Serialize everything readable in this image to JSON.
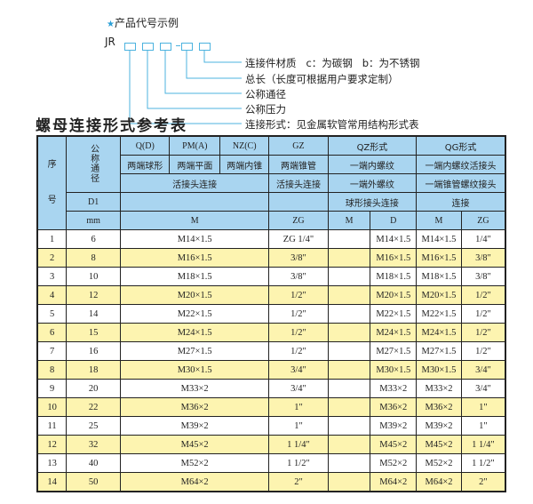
{
  "example": {
    "title": "产品代号示例",
    "code_prefix": "JR",
    "labels": [
      "连接件材质   c：为碳钢   b：为不锈钢",
      "总长（长度可根据用户要求定制）",
      "公称通径",
      "公称压力",
      "连接形式：见金属软管常用结构形式表"
    ],
    "accent_color": "#4cb3df"
  },
  "table_title": "螺母连接形式参考表",
  "header": {
    "seq": "序\n号",
    "nominal": "公称通径",
    "d1": "D1",
    "mm": "mm",
    "q": "Q(D)",
    "pm": "PM(A)",
    "nz": "NZ(C)",
    "gz": "GZ",
    "qz": "QZ形式",
    "qg": "QG形式",
    "q2": "两端球形",
    "pm2": "两端平面",
    "nz2": "两端内锥",
    "gz2": "两端锥管",
    "qz2": "一端内螺纹",
    "qg2": "一端内螺纹活接头",
    "row3_a": "活接头连接",
    "row3_gz": "活接头连接",
    "row3_qz": "一端外螺纹",
    "row3_qg": "一端锥管螺纹接头",
    "row4_qz": "球形接头连接",
    "row4_qg": "连接",
    "m": "M",
    "zg": "ZG",
    "qz_m": "M",
    "qz_d": "D",
    "qg_m": "M",
    "qg_zg": "ZG"
  },
  "colors": {
    "header_bg": "#a9d5f0",
    "alt_row_bg": "#fdf4b0"
  },
  "rows": [
    {
      "no": "1",
      "d1": "6",
      "m": "M14×1.5",
      "zg": "ZG 1/4\"",
      "qz_m": "",
      "qz_d": "M14×1.5",
      "qg_m": "M14×1.5",
      "qg_zg": "1/4\""
    },
    {
      "no": "2",
      "d1": "8",
      "m": "M16×1.5",
      "zg": "3/8\"",
      "qz_m": "",
      "qz_d": "M16×1.5",
      "qg_m": "M16×1.5",
      "qg_zg": "3/8\""
    },
    {
      "no": "3",
      "d1": "10",
      "m": "M18×1.5",
      "zg": "3/8\"",
      "qz_m": "",
      "qz_d": "M18×1.5",
      "qg_m": "M18×1.5",
      "qg_zg": "3/8\""
    },
    {
      "no": "4",
      "d1": "12",
      "m": "M20×1.5",
      "zg": "1/2\"",
      "qz_m": "",
      "qz_d": "M20×1.5",
      "qg_m": "M20×1.5",
      "qg_zg": "1/2\""
    },
    {
      "no": "5",
      "d1": "14",
      "m": "M22×1.5",
      "zg": "1/2\"",
      "qz_m": "",
      "qz_d": "M22×1.5",
      "qg_m": "M22×1.5",
      "qg_zg": "1/2\""
    },
    {
      "no": "6",
      "d1": "15",
      "m": "M24×1.5",
      "zg": "1/2\"",
      "qz_m": "",
      "qz_d": "M24×1.5",
      "qg_m": "M24×1.5",
      "qg_zg": "1/2\""
    },
    {
      "no": "7",
      "d1": "16",
      "m": "M27×1.5",
      "zg": "1/2\"",
      "qz_m": "",
      "qz_d": "M27×1.5",
      "qg_m": "M27×1.5",
      "qg_zg": "1/2\""
    },
    {
      "no": "8",
      "d1": "18",
      "m": "M30×1.5",
      "zg": "3/4\"",
      "qz_m": "",
      "qz_d": "M30×1.5",
      "qg_m": "M30×1.5",
      "qg_zg": "3/4\""
    },
    {
      "no": "9",
      "d1": "20",
      "m": "M33×2",
      "zg": "3/4\"",
      "qz_m": "",
      "qz_d": "M33×2",
      "qg_m": "M33×2",
      "qg_zg": "3/4\""
    },
    {
      "no": "10",
      "d1": "22",
      "m": "M36×2",
      "zg": "1\"",
      "qz_m": "",
      "qz_d": "M36×2",
      "qg_m": "M36×2",
      "qg_zg": "1\""
    },
    {
      "no": "11",
      "d1": "25",
      "m": "M39×2",
      "zg": "1\"",
      "qz_m": "",
      "qz_d": "M39×2",
      "qg_m": "M39×2",
      "qg_zg": "1\""
    },
    {
      "no": "12",
      "d1": "32",
      "m": "M45×2",
      "zg": "1 1/4\"",
      "qz_m": "",
      "qz_d": "M45×2",
      "qg_m": "M45×2",
      "qg_zg": "1 1/4\""
    },
    {
      "no": "13",
      "d1": "40",
      "m": "M52×2",
      "zg": "1 1/2\"",
      "qz_m": "",
      "qz_d": "M52×2",
      "qg_m": "M52×2",
      "qg_zg": "1 1/2\""
    },
    {
      "no": "14",
      "d1": "50",
      "m": "M64×2",
      "zg": "2\"",
      "qz_m": "",
      "qz_d": "M64×2",
      "qg_m": "M64×2",
      "qg_zg": "2\""
    }
  ]
}
